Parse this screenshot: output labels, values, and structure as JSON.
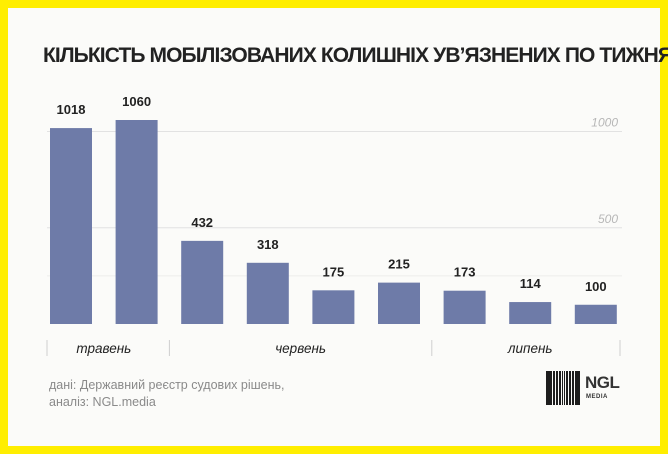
{
  "chart_data": {
    "type": "bar",
    "title": "КІЛЬКІСТЬ МОБІЛІЗОВАНИХ КОЛИШНІХ УВ’ЯЗНЕНИХ ПО ТИЖНЯХ",
    "values": [
      1018,
      1060,
      432,
      318,
      175,
      215,
      173,
      114,
      100
    ],
    "month_groups": [
      {
        "label": "травень",
        "bars": 2
      },
      {
        "label": "червень",
        "bars": 4
      },
      {
        "label": "липень",
        "bars": 3
      }
    ],
    "ylim": [
      0,
      1060
    ],
    "yticks": [
      0,
      500,
      1000
    ],
    "ytick_labels": [
      "",
      "500",
      "1000"
    ],
    "grid": true,
    "bar_color": "#6e7ba8"
  },
  "source": {
    "line1": "дані: Державний реєстр судових рішень,",
    "line2": "аналіз: NGL.media"
  },
  "logo": {
    "name": "NGL",
    "sub": "MEDIA"
  },
  "colors": {
    "frame": "#ffee00",
    "background": "#fbfbf9",
    "bar": "#6e7ba8"
  }
}
